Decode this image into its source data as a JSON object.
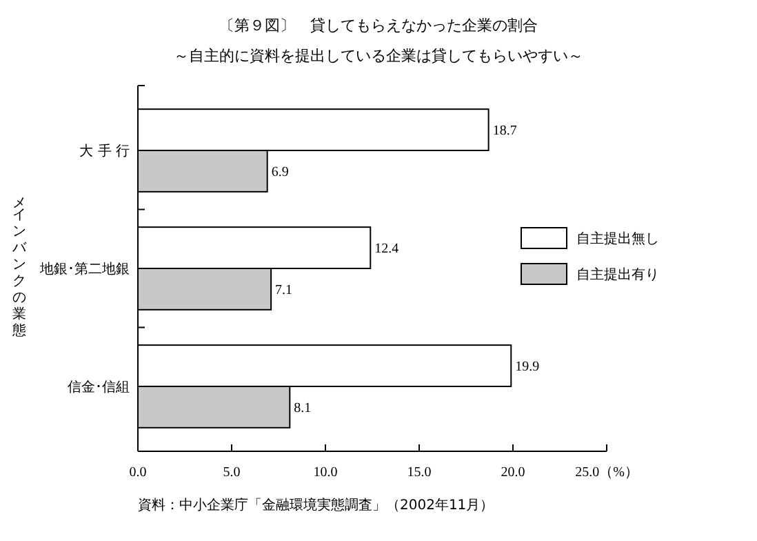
{
  "chart_data": {
    "type": "bar",
    "orientation": "horizontal",
    "title": "〔第９図〕　貸してもらえなかった企業の割合",
    "subtitle": "～自主的に資料を提出している企業は貸してもらいやすい～",
    "ylabel": "メインバンクの業態",
    "categories": [
      "大 手 行",
      "地銀･第二地銀",
      "信金･信組"
    ],
    "series": [
      {
        "name": "自主提出無し",
        "color": "#ffffff",
        "values": [
          18.7,
          12.4,
          19.9
        ]
      },
      {
        "name": "自主提出有り",
        "color": "#c8c8c8",
        "values": [
          6.9,
          7.1,
          8.1
        ]
      }
    ],
    "xlim": [
      0,
      25
    ],
    "xticks": [
      {
        "value": 0,
        "label": "0.0"
      },
      {
        "value": 5,
        "label": "5.0"
      },
      {
        "value": 10,
        "label": "10.0"
      },
      {
        "value": 15,
        "label": "15.0"
      },
      {
        "value": 20,
        "label": "20.0"
      },
      {
        "value": 25,
        "label": "25.0（%）"
      }
    ],
    "data_labels": true,
    "legend": "right",
    "grid": false,
    "annotations": [
      "資料：中小企業庁「金融環境実態調査」（2002年11月）"
    ]
  }
}
